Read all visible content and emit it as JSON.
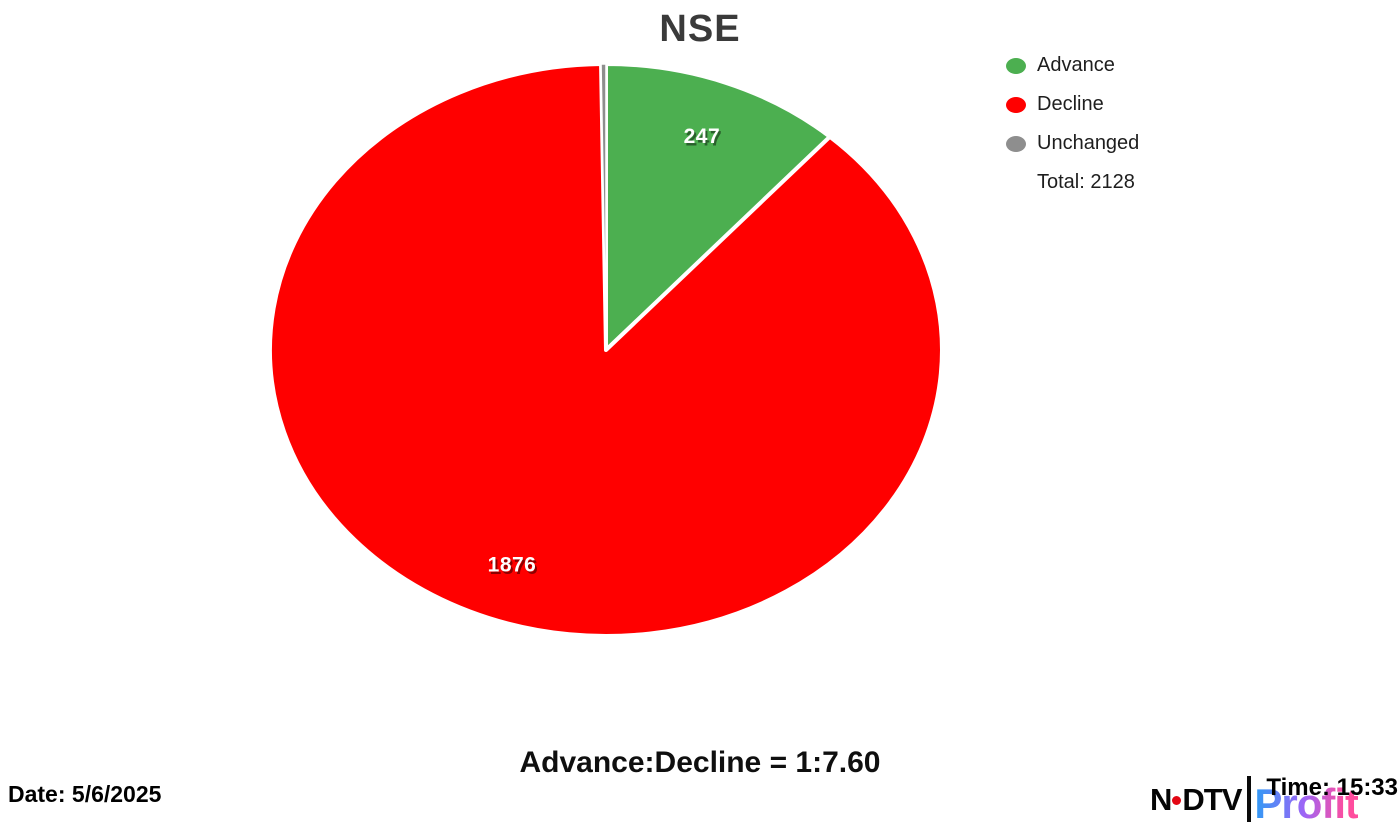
{
  "chart_data": {
    "type": "pie",
    "title": "NSE",
    "series": [
      {
        "name": "Advance",
        "value": 247,
        "color": "#4CAF50",
        "show_label": true
      },
      {
        "name": "Decline",
        "value": 1876,
        "color": "#FF0000",
        "show_label": true
      },
      {
        "name": "Unchanged",
        "value": 5,
        "color": "#8E8E8E",
        "show_label": false
      }
    ],
    "total": 2128,
    "total_label": "Total: 2128",
    "legend_position": "top-right",
    "start_angle_deg": 0,
    "direction": "clockwise",
    "label_color": "#ffffff"
  },
  "footer": {
    "ratio_text": "Advance:Decline = 1:7.60",
    "date_text": "Date: 5/6/2025",
    "time_text": "Time: 15:33"
  },
  "branding": {
    "ndtv_n": "N",
    "ndtv_dtv": "DTV",
    "profit": "Profit",
    "gradient_start": "#2E9BF5",
    "gradient_mid": "#9D65F6",
    "gradient_end": "#FF4D9E"
  }
}
